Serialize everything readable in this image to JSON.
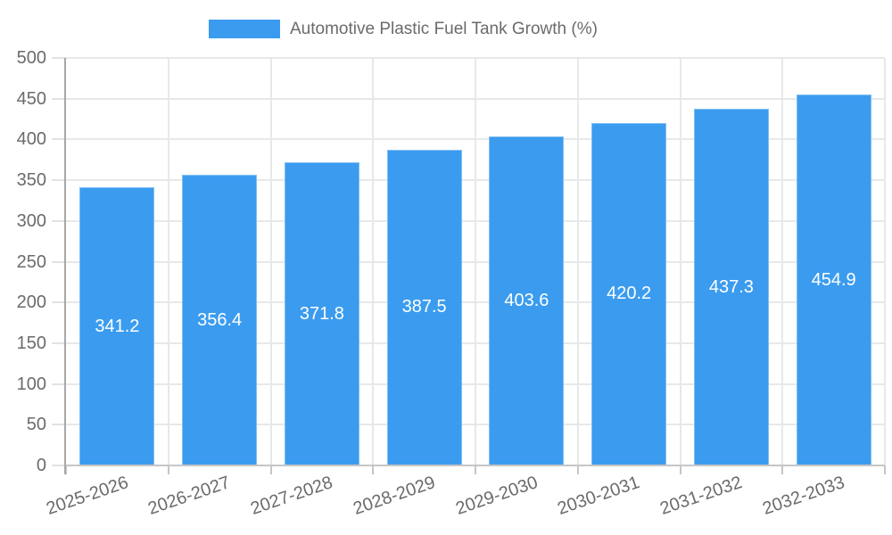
{
  "legend": {
    "label": "Automotive Plastic Fuel Tank Growth (%)"
  },
  "colors": {
    "bar": "#3b9cef",
    "grid": "#e8e8e8",
    "y_axis_line": "#a8a8a8",
    "x_axis_line": "#c6c6c6",
    "x_tick": "#c6c6c6",
    "y_tick": "#e2e2e2",
    "axis_text": "#6b6b6b",
    "bar_label_text": "#ffffff",
    "background": "#ffffff"
  },
  "chart_data": {
    "type": "bar",
    "title": "Automotive Plastic Fuel Tank Growth (%)",
    "categories": [
      "2025-2026",
      "2026-2027",
      "2027-2028",
      "2028-2029",
      "2029-2030",
      "2030-2031",
      "2031-2032",
      "2032-2033"
    ],
    "values": [
      341.2,
      356.4,
      371.8,
      387.5,
      403.6,
      420.2,
      437.3,
      454.9
    ],
    "value_labels": [
      "341.2",
      "356.4",
      "371.8",
      "387.5",
      "403.6",
      "420.2",
      "437.3",
      "454.9"
    ],
    "xlabel": "",
    "ylabel": "",
    "ylim": [
      0,
      500
    ],
    "ytick_step": 50,
    "grid": true,
    "legend_position": "top",
    "value_label_position": "center-of-bar"
  }
}
